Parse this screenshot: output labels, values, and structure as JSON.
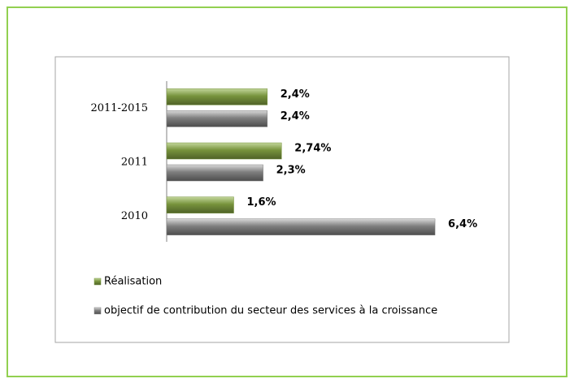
{
  "chart_data": {
    "type": "hbar",
    "categories": [
      "2011-2015",
      "2011",
      "2010"
    ],
    "series": [
      {
        "name": "Réalisation",
        "color": "#77933c",
        "values": [
          2.4,
          2.74,
          1.6
        ],
        "value_labels": [
          "2,4%",
          "2,74%",
          "1,6%"
        ]
      },
      {
        "name": "objectif de contribution du secteur des services à la croissance",
        "color": "#7f7f7f",
        "values": [
          2.4,
          2.3,
          6.4
        ],
        "value_labels": [
          "2,4%",
          "2,3%",
          "6,4%"
        ]
      }
    ],
    "xlim": [
      0,
      7
    ]
  }
}
